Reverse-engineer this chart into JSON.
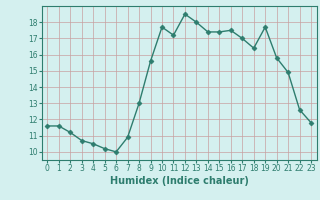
{
  "x": [
    0,
    1,
    2,
    3,
    4,
    5,
    6,
    7,
    8,
    9,
    10,
    11,
    12,
    13,
    14,
    15,
    16,
    17,
    18,
    19,
    20,
    21,
    22,
    23
  ],
  "y": [
    11.6,
    11.6,
    11.2,
    10.7,
    10.5,
    10.2,
    10.0,
    10.9,
    13.0,
    15.6,
    17.7,
    17.2,
    18.5,
    18.0,
    17.4,
    17.4,
    17.5,
    17.0,
    16.4,
    17.7,
    15.8,
    14.9,
    12.6,
    11.8
  ],
  "line_color": "#2e7d6e",
  "marker": "D",
  "marker_size": 2.5,
  "linewidth": 1.0,
  "xlabel": "Humidex (Indice chaleur)",
  "xlabel_fontsize": 7,
  "xlabel_weight": "bold",
  "xlim": [
    -0.5,
    23.5
  ],
  "ylim": [
    9.5,
    19.0
  ],
  "yticks": [
    10,
    11,
    12,
    13,
    14,
    15,
    16,
    17,
    18
  ],
  "xticks": [
    0,
    1,
    2,
    3,
    4,
    5,
    6,
    7,
    8,
    9,
    10,
    11,
    12,
    13,
    14,
    15,
    16,
    17,
    18,
    19,
    20,
    21,
    22,
    23
  ],
  "background_color": "#d4f0ef",
  "grid_color": "#c8a0a0",
  "tick_fontsize": 5.5
}
